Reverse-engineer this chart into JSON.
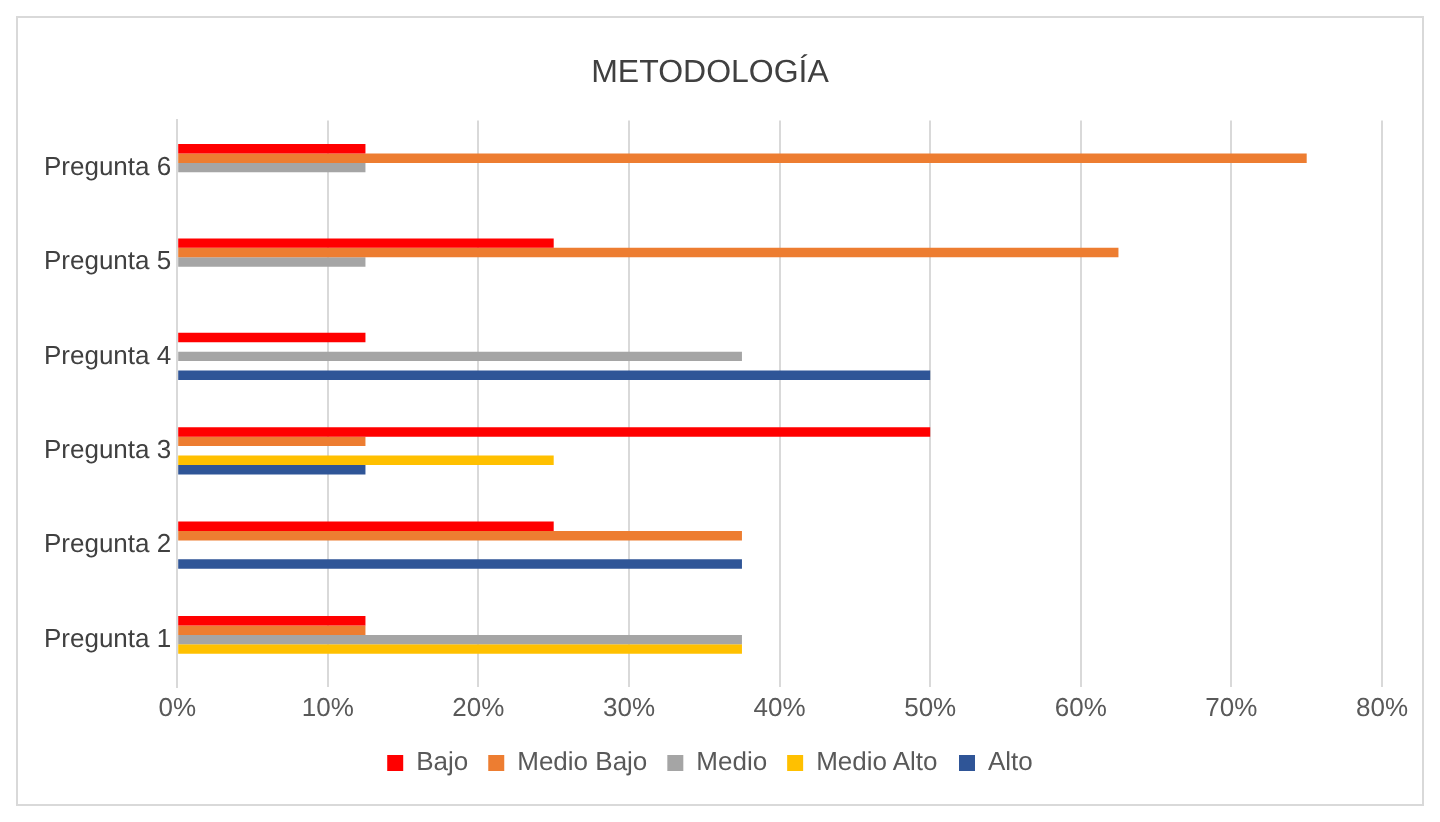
{
  "chart_data": {
    "type": "bar",
    "orientation": "horizontal",
    "title": "METODOLOGÍA",
    "categories": [
      "Pregunta 6",
      "Pregunta 5",
      "Pregunta 4",
      "Pregunta 3",
      "Pregunta 2",
      "Pregunta 1"
    ],
    "series": [
      {
        "name": "Bajo",
        "color": "#ff0000",
        "values": [
          12.5,
          25,
          12.5,
          50,
          25,
          12.5
        ]
      },
      {
        "name": "Medio Bajo",
        "color": "#ed7d31",
        "values": [
          75,
          62.5,
          0,
          12.5,
          37.5,
          12.5
        ]
      },
      {
        "name": "Medio",
        "color": "#a5a5a5",
        "values": [
          12.5,
          12.5,
          37.5,
          0,
          0,
          37.5
        ]
      },
      {
        "name": "Medio Alto",
        "color": "#ffc000",
        "values": [
          0,
          0,
          0,
          25,
          0,
          37.5
        ]
      },
      {
        "name": "Alto",
        "color": "#2f5597",
        "values": [
          0,
          0,
          50,
          12.5,
          37.5,
          0
        ]
      }
    ],
    "xlim": [
      0,
      80
    ],
    "xticks": [
      {
        "value": 0,
        "label": "0%"
      },
      {
        "value": 10,
        "label": "10%"
      },
      {
        "value": 20,
        "label": "20%"
      },
      {
        "value": 30,
        "label": "30%"
      },
      {
        "value": 40,
        "label": "40%"
      },
      {
        "value": 50,
        "label": "50%"
      },
      {
        "value": 60,
        "label": "60%"
      },
      {
        "value": 70,
        "label": "70%"
      },
      {
        "value": 80,
        "label": "80%"
      }
    ],
    "grid": "x",
    "legend": "bottom"
  }
}
